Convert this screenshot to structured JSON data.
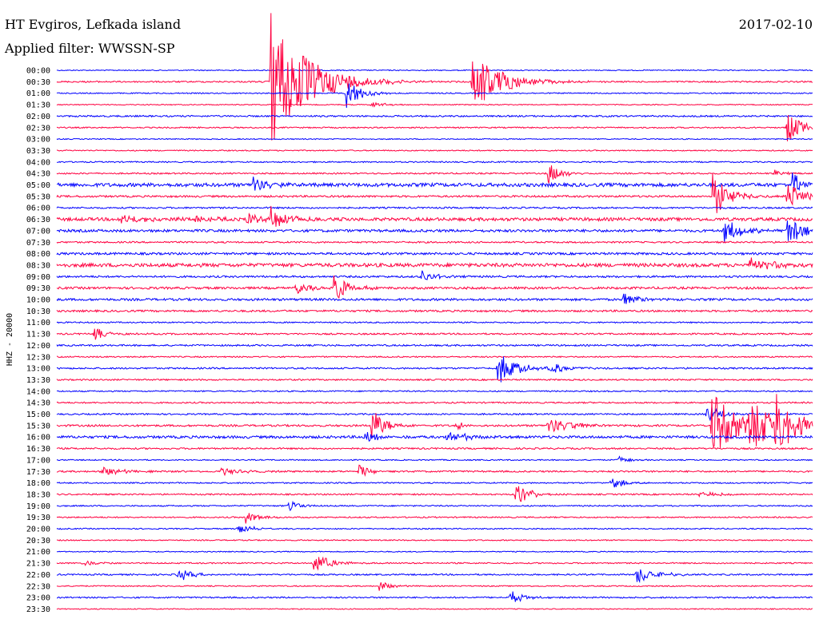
{
  "header": {
    "station": "HT Evgiros, Lefkada island",
    "date": "2017-02-10",
    "filter": "Applied filter: WWSSN-SP"
  },
  "chart_data": {
    "type": "line",
    "title": "HT Evgiros, Lefkada island",
    "subtitle": "Applied filter: WWSSN-SP",
    "ylabel": "HHZ - 20000",
    "xlabel": "",
    "grid": false,
    "trace_minutes": 30,
    "tick_labels": [
      "00:00",
      "00:30",
      "01:00",
      "01:30",
      "02:00",
      "02:30",
      "03:00",
      "03:30",
      "04:00",
      "04:30",
      "05:00",
      "05:30",
      "06:00",
      "06:30",
      "07:00",
      "07:30",
      "08:00",
      "08:30",
      "09:00",
      "09:30",
      "10:00",
      "10:30",
      "11:00",
      "11:30",
      "12:00",
      "12:30",
      "13:00",
      "13:30",
      "14:00",
      "14:30",
      "15:00",
      "15:30",
      "16:00",
      "16:30",
      "17:00",
      "17:30",
      "18:00",
      "18:30",
      "19:00",
      "19:30",
      "20:00",
      "20:30",
      "21:00",
      "21:30",
      "22:00",
      "22:30",
      "23:00",
      "23:30"
    ],
    "colors": [
      "#0000ff",
      "#ff0040"
    ],
    "noise": [
      0.6,
      0.9,
      0.7,
      0.6,
      1.0,
      0.8,
      0.6,
      0.7,
      0.8,
      0.9,
      2.2,
      1.2,
      1.0,
      2.0,
      1.6,
      1.0,
      1.4,
      2.2,
      1.2,
      1.4,
      1.4,
      1.2,
      0.8,
      1.0,
      1.0,
      0.8,
      1.0,
      0.9,
      0.8,
      0.9,
      0.9,
      1.2,
      1.6,
      1.0,
      0.7,
      1.0,
      0.8,
      0.9,
      0.8,
      0.8,
      0.7,
      0.7,
      0.6,
      0.8,
      0.9,
      0.7,
      0.9,
      0.6
    ],
    "events": [
      {
        "t": "00:30",
        "minute": 8.5,
        "amp": 90,
        "dur": 2.2
      },
      {
        "t": "00:30",
        "minute": 16.5,
        "amp": 38,
        "dur": 1.8
      },
      {
        "t": "01:00",
        "minute": 11.5,
        "amp": 22,
        "dur": 0.8
      },
      {
        "t": "01:30",
        "minute": 12.5,
        "amp": 4,
        "dur": 0.8
      },
      {
        "t": "02:30",
        "minute": 29,
        "amp": 18,
        "dur": 1.0
      },
      {
        "t": "04:30",
        "minute": 19.5,
        "amp": 14,
        "dur": 0.8
      },
      {
        "t": "04:30",
        "minute": 28.5,
        "amp": 4,
        "dur": 0.6
      },
      {
        "t": "05:00",
        "minute": 7.8,
        "amp": 12,
        "dur": 0.8
      },
      {
        "t": "05:00",
        "minute": 29.2,
        "amp": 18,
        "dur": 0.5
      },
      {
        "t": "05:30",
        "minute": 26,
        "amp": 30,
        "dur": 1.0
      },
      {
        "t": "05:30",
        "minute": 29,
        "amp": 22,
        "dur": 0.8
      },
      {
        "t": "06:30",
        "minute": 2.5,
        "amp": 6,
        "dur": 2.0
      },
      {
        "t": "06:30",
        "minute": 5.5,
        "amp": 5,
        "dur": 1.0
      },
      {
        "t": "06:30",
        "minute": 7.5,
        "amp": 8,
        "dur": 1.0
      },
      {
        "t": "06:30",
        "minute": 8.5,
        "amp": 16,
        "dur": 1.0
      },
      {
        "t": "07:00",
        "minute": 26.5,
        "amp": 16,
        "dur": 1.0
      },
      {
        "t": "07:00",
        "minute": 29,
        "amp": 20,
        "dur": 1.0
      },
      {
        "t": "08:30",
        "minute": 27.5,
        "amp": 8,
        "dur": 2.0
      },
      {
        "t": "09:00",
        "minute": 14.5,
        "amp": 8,
        "dur": 0.8
      },
      {
        "t": "09:30",
        "minute": 9.5,
        "amp": 8,
        "dur": 0.8
      },
      {
        "t": "09:30",
        "minute": 11,
        "amp": 22,
        "dur": 0.8
      },
      {
        "t": "10:00",
        "minute": 22.5,
        "amp": 9,
        "dur": 1.0
      },
      {
        "t": "11:30",
        "minute": 1.5,
        "amp": 8,
        "dur": 0.8
      },
      {
        "t": "13:00",
        "minute": 17.5,
        "amp": 20,
        "dur": 1.2
      },
      {
        "t": "13:00",
        "minute": 19.5,
        "amp": 8,
        "dur": 1.0
      },
      {
        "t": "15:00",
        "minute": 25.8,
        "amp": 14,
        "dur": 0.8
      },
      {
        "t": "15:30",
        "minute": 12.5,
        "amp": 22,
        "dur": 0.8
      },
      {
        "t": "15:30",
        "minute": 15.8,
        "amp": 6,
        "dur": 0.6
      },
      {
        "t": "15:30",
        "minute": 19.5,
        "amp": 10,
        "dur": 1.6
      },
      {
        "t": "15:30",
        "minute": 26,
        "amp": 42,
        "dur": 1.6
      },
      {
        "t": "15:30",
        "minute": 27.5,
        "amp": 35,
        "dur": 1.4
      },
      {
        "t": "15:30",
        "minute": 28.5,
        "amp": 38,
        "dur": 1.4
      },
      {
        "t": "16:00",
        "minute": 12.2,
        "amp": 8,
        "dur": 0.8
      },
      {
        "t": "16:00",
        "minute": 15.5,
        "amp": 10,
        "dur": 1.0
      },
      {
        "t": "17:00",
        "minute": 22.3,
        "amp": 6,
        "dur": 0.6
      },
      {
        "t": "17:30",
        "minute": 1.8,
        "amp": 6,
        "dur": 1.2
      },
      {
        "t": "17:30",
        "minute": 6.5,
        "amp": 5,
        "dur": 1.2
      },
      {
        "t": "17:30",
        "minute": 12,
        "amp": 8,
        "dur": 0.8
      },
      {
        "t": "18:00",
        "minute": 22,
        "amp": 8,
        "dur": 0.8
      },
      {
        "t": "18:30",
        "minute": 18.2,
        "amp": 16,
        "dur": 0.8
      },
      {
        "t": "18:30",
        "minute": 25.5,
        "amp": 4,
        "dur": 1.2
      },
      {
        "t": "19:00",
        "minute": 9.2,
        "amp": 9,
        "dur": 0.6
      },
      {
        "t": "19:30",
        "minute": 7.5,
        "amp": 8,
        "dur": 0.8
      },
      {
        "t": "20:00",
        "minute": 7.2,
        "amp": 8,
        "dur": 0.8
      },
      {
        "t": "21:30",
        "minute": 1,
        "amp": 4,
        "dur": 1.0
      },
      {
        "t": "21:30",
        "minute": 10.2,
        "amp": 14,
        "dur": 1.0
      },
      {
        "t": "22:00",
        "minute": 4.8,
        "amp": 10,
        "dur": 0.8
      },
      {
        "t": "22:00",
        "minute": 23,
        "amp": 12,
        "dur": 1.2
      },
      {
        "t": "22:30",
        "minute": 12.8,
        "amp": 8,
        "dur": 0.6
      },
      {
        "t": "23:00",
        "minute": 18,
        "amp": 9,
        "dur": 0.8
      }
    ]
  }
}
